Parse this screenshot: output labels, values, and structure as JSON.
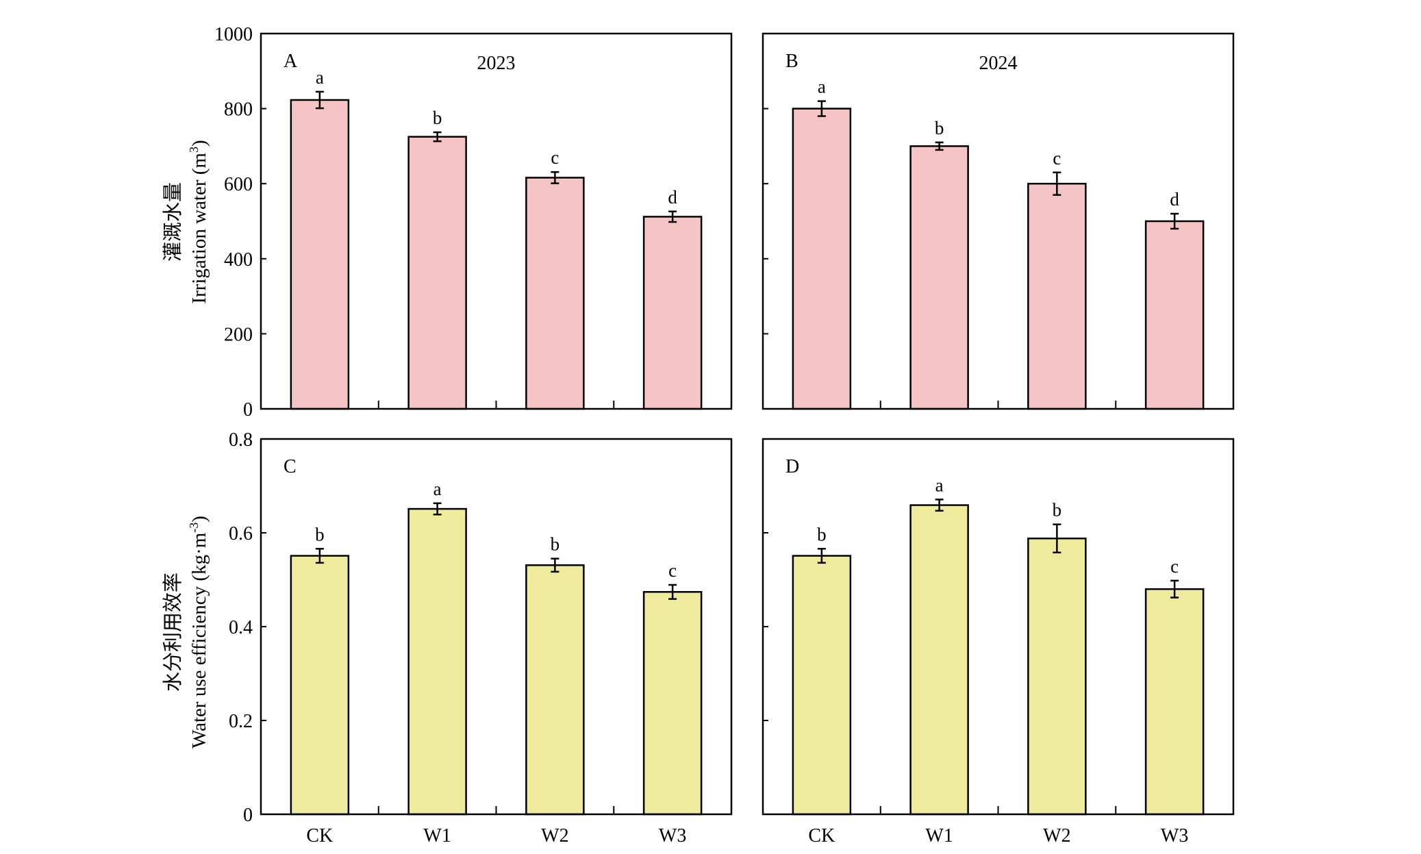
{
  "figure": {
    "row_labels": [
      {
        "cn": "灌溉水量",
        "en": "Irrigation water (m",
        "sup": "3",
        "en_end": ")"
      },
      {
        "cn": "水分利用效率",
        "en": "Water use efficiency (kg·m",
        "sup": "-3",
        "en_end": ")"
      }
    ],
    "colors": {
      "top_bar": "#f6c4c5",
      "bottom_bar": "#efeb9c",
      "stroke": "#000000"
    }
  },
  "chart_data": [
    {
      "panel": "A",
      "type": "bar",
      "title": "2023",
      "categories": [
        "CK",
        "W1",
        "W2",
        "W3"
      ],
      "values": [
        823,
        725,
        616,
        512
      ],
      "errors": [
        22,
        12,
        15,
        14
      ],
      "letters": [
        "a",
        "b",
        "c",
        "d"
      ],
      "ylim": [
        0,
        1000
      ],
      "yticks": [
        "0",
        "200",
        "400",
        "600",
        "800",
        "1000"
      ],
      "show_yticklabels": true,
      "show_xticklabels": false
    },
    {
      "panel": "B",
      "type": "bar",
      "title": "2024",
      "categories": [
        "CK",
        "W1",
        "W2",
        "W3"
      ],
      "values": [
        800,
        700,
        600,
        500
      ],
      "errors": [
        20,
        10,
        30,
        20
      ],
      "letters": [
        "a",
        "b",
        "c",
        "d"
      ],
      "ylim": [
        0,
        1000
      ],
      "yticks": [
        "0",
        "200",
        "400",
        "600",
        "800",
        "1000"
      ],
      "show_yticklabels": false,
      "show_xticklabels": false
    },
    {
      "panel": "C",
      "type": "bar",
      "title": "",
      "categories": [
        "CK",
        "W1",
        "W2",
        "W3"
      ],
      "values": [
        0.551,
        0.651,
        0.531,
        0.474
      ],
      "errors": [
        0.015,
        0.012,
        0.014,
        0.015
      ],
      "letters": [
        "b",
        "a",
        "b",
        "c"
      ],
      "ylim": [
        0,
        0.8
      ],
      "yticks": [
        "0",
        "0.2",
        "0.4",
        "0.6",
        "0.8"
      ],
      "show_yticklabels": true,
      "show_xticklabels": true
    },
    {
      "panel": "D",
      "type": "bar",
      "title": "",
      "categories": [
        "CK",
        "W1",
        "W2",
        "W3"
      ],
      "values": [
        0.551,
        0.659,
        0.588,
        0.48
      ],
      "errors": [
        0.015,
        0.012,
        0.03,
        0.018
      ],
      "letters": [
        "b",
        "a",
        "b",
        "c"
      ],
      "ylim": [
        0,
        0.8
      ],
      "yticks": [
        "0",
        "0.2",
        "0.4",
        "0.6",
        "0.8"
      ],
      "show_yticklabels": false,
      "show_xticklabels": true
    }
  ]
}
